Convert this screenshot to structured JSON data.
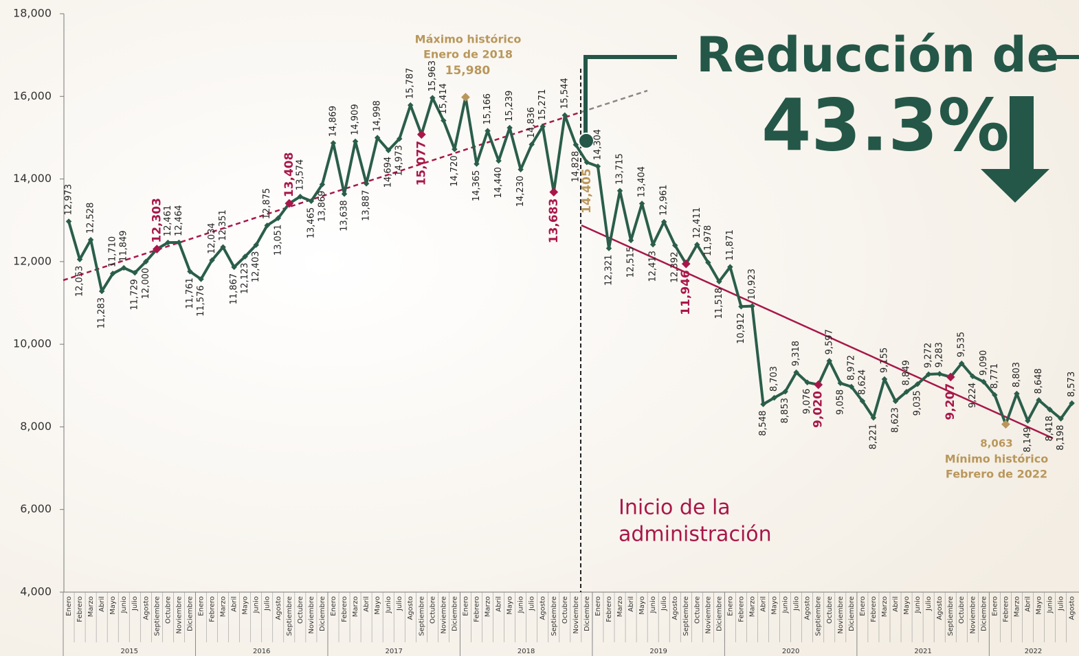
{
  "chart_data": {
    "type": "line",
    "categories": [
      "Enero",
      "Febrero",
      "Marzo",
      "Abril",
      "Mayo",
      "Junio",
      "Julio",
      "Agosto",
      "Septiembre",
      "Octubre",
      "Noviembre",
      "Diciembre",
      "Enero",
      "Febrero",
      "Marzo",
      "Abril",
      "Mayo",
      "Junio",
      "Julio",
      "Agosto",
      "Septiembre",
      "Octubre",
      "Noviembre",
      "Diciembre",
      "Enero",
      "Febrero",
      "Marzo",
      "Abril",
      "Mayo",
      "Junio",
      "Julio",
      "Agosto",
      "Septiembre",
      "Octubre",
      "Noviembre",
      "Diciembre",
      "Enero",
      "Febrero",
      "Marzo",
      "Abril",
      "Mayo",
      "Junio",
      "Julio",
      "Agosto",
      "Septiembre",
      "Octubre",
      "Noviembre",
      "Diciembre",
      "Enero",
      "Febrero",
      "Marzo",
      "Abril",
      "Mayo",
      "Junio",
      "Julio",
      "Agosto",
      "Septiembre",
      "Octubre",
      "Noviembre",
      "Diciembre",
      "Enero",
      "Febrero",
      "Marzo",
      "Abril",
      "Mayo",
      "Junio",
      "Julio",
      "Agosto",
      "Septiembre",
      "Octubre",
      "Noviembre",
      "Diciembre",
      "Enero",
      "Febrero",
      "Marzo",
      "Abril",
      "Mayo",
      "Junio",
      "Julio",
      "Agosto",
      "Septiembre",
      "Octubre",
      "Noviembre",
      "Diciembre",
      "Enero",
      "Febrero",
      "Marzo",
      "Abril",
      "Mayo",
      "Junio",
      "Julio",
      "Agosto"
    ],
    "year_labels": [
      "2015",
      "2016",
      "2017",
      "2018",
      "2019",
      "2020",
      "2021",
      "2022"
    ],
    "values": [
      12973,
      12053,
      12528,
      11283,
      11710,
      11849,
      11729,
      12000,
      12303,
      12461,
      12464,
      11761,
      11576,
      12034,
      12351,
      11867,
      12123,
      12403,
      12875,
      13051,
      13408,
      13574,
      13465,
      13869,
      14869,
      13638,
      14909,
      13887,
      14998,
      14694,
      14973,
      15787,
      15077,
      15963,
      15414,
      14720,
      15980,
      14365,
      15166,
      14440,
      15239,
      14230,
      14836,
      15271,
      13683,
      15544,
      14828,
      14405,
      14304,
      12321,
      13715,
      12515,
      13404,
      12413,
      12961,
      12392,
      11946,
      12411,
      11978,
      11518,
      11871,
      10912,
      10923,
      8548,
      8703,
      8853,
      9318,
      9076,
      9020,
      9597,
      9058,
      8972,
      8624,
      8221,
      9155,
      8623,
      8849,
      9035,
      9272,
      9283,
      9207,
      9535,
      9224,
      9090,
      8771,
      8063,
      8803,
      8149,
      8648,
      8418,
      8198,
      8573
    ],
    "value_labels": [
      "12,973",
      "12,053",
      "12,528",
      "11,283",
      "11,710",
      "11,849",
      "11,729",
      "12,000",
      "12,303",
      "12,461",
      "12,464",
      "11,761",
      "11,576",
      "12,034",
      "12,351",
      "11,867",
      "12,123",
      "12,403",
      "12,875",
      "13,051",
      "13,408",
      "13,574",
      "13,465",
      "13,869",
      "14,869",
      "13,638",
      "14,909",
      "13,887",
      "14,998",
      "14,694",
      "14,973",
      "15,787",
      "15,077",
      "15,963",
      "15,414",
      "14,720",
      "15,980",
      "14,365",
      "15,166",
      "14,440",
      "15,239",
      "14,230",
      "14,836",
      "15,271",
      "13,683",
      "15,544",
      "14,828",
      "14,405",
      "14,304",
      "12,321",
      "13,715",
      "12,515",
      "13,404",
      "12,413",
      "12,961",
      "12,392",
      "11,946",
      "12,411",
      "11,978",
      "11,518",
      "11,871",
      "10,912",
      "10,923",
      "8,548",
      "8,703",
      "8,853",
      "9,318",
      "9,076",
      "9,020",
      "9,597",
      "9,058",
      "8,972",
      "8,624",
      "8,221",
      "9,155",
      "8,623",
      "8,849",
      "9,035",
      "9,272",
      "9,283",
      "9,207",
      "9,535",
      "9,224",
      "9,090",
      "8,771",
      "8,063",
      "8,803",
      "8,149",
      "8,648",
      "8,418",
      "8,198",
      "8,573"
    ],
    "color": "#2a5e4b",
    "highlight": {
      "color": "#a8174a",
      "indices": [
        8,
        20,
        32,
        44,
        56,
        68,
        80
      ]
    },
    "extremes": {
      "color": "#b9975b",
      "indices": [
        36,
        85
      ]
    },
    "gold_label_indices": [
      47
    ],
    "ylim": [
      4000,
      18000
    ],
    "yticks": [
      {
        "value": 4000,
        "label": "4,000"
      },
      {
        "value": 6000,
        "label": "6,000"
      },
      {
        "value": 8000,
        "label": "8,000"
      },
      {
        "value": 10000,
        "label": "10,000"
      },
      {
        "value": 12000,
        "label": "12,000"
      },
      {
        "value": 14000,
        "label": "14,000"
      },
      {
        "value": 16000,
        "label": "16,000"
      },
      {
        "value": 18000,
        "label": "18,000"
      }
    ],
    "annotations": {
      "max_title": "Máximo histórico",
      "max_date": "Enero de 2018",
      "min_title": "Mínimo histórico",
      "min_date": "Febrero de 2022",
      "start_line1": "Inicio de la",
      "start_line2": "administración",
      "reduction": "Reducción de",
      "reduction_value": "43.3%"
    }
  }
}
